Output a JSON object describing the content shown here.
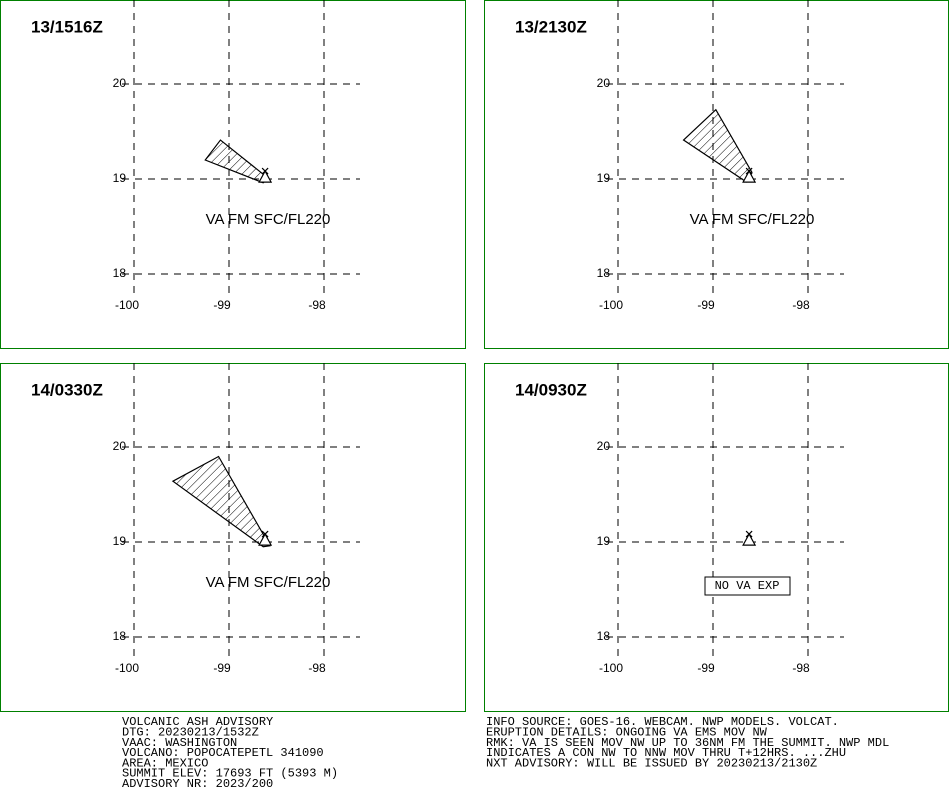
{
  "xticks": [
    -100,
    -99,
    -98
  ],
  "yticks": [
    20,
    19,
    18
  ],
  "volcano": {
    "lon": -98.62,
    "lat": 19.02
  },
  "panels": [
    {
      "title": "13/1516Z",
      "label": "VA FM SFC/FL220",
      "ash": {
        "lon": [
          -99.25,
          -99.09,
          -98.59,
          -98.64
        ],
        "lat": [
          19.2,
          19.41,
          19.01,
          18.96
        ]
      }
    },
    {
      "title": "13/2130Z",
      "label": "VA FM SFC/FL220",
      "ash": {
        "lon": [
          -99.31,
          -98.97,
          -98.59,
          -98.65
        ],
        "lat": [
          19.41,
          19.73,
          19.07,
          18.97
        ]
      }
    },
    {
      "title": "14/0330Z",
      "label": "VA FM SFC/FL220",
      "ash": {
        "lon": [
          -99.59,
          -99.11,
          -98.57,
          -98.64
        ],
        "lat": [
          19.64,
          19.9,
          18.96,
          18.95
        ]
      }
    },
    {
      "title": "14/0930Z",
      "label": "NO VA EXP"
    }
  ],
  "advisory_left": [
    "VOLCANIC ASH ADVISORY",
    "DTG: 20230213/1532Z",
    "VAAC: WASHINGTON",
    "VOLCANO: POPOCATEPETL 341090",
    "AREA: MEXICO",
    "SUMMIT ELEV: 17693 FT (5393 M)",
    "ADVISORY NR: 2023/200"
  ],
  "advisory_right": [
    "INFO SOURCE: GOES-16. WEBCAM. NWP MODELS. VOLCAT.",
    "ERUPTION DETAILS: ONGOING VA EMS MOV NW",
    "RMK: VA IS SEEN MOV NW UP TO 36NM FM THE SUMMIT. NWP MDL",
    "INDICATES A CON NW TO NNW MOV THRU T+12HRS. ...ZHU",
    "NXT ADVISORY: WILL BE ISSUED BY 20230213/2130Z"
  ]
}
